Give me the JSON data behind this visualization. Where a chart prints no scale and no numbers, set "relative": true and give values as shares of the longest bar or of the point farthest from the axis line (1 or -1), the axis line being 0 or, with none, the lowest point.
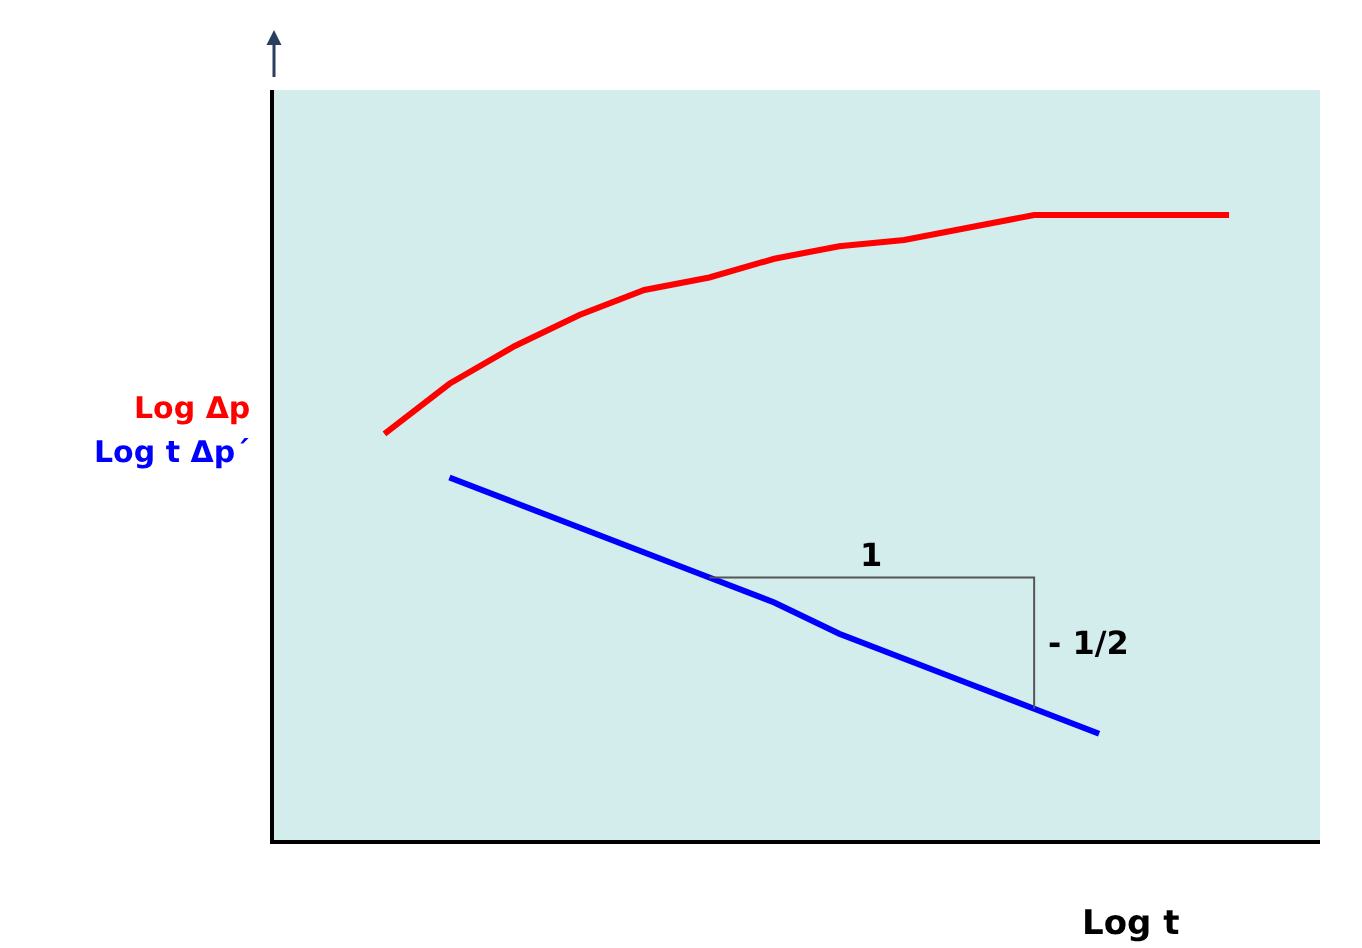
{
  "chart_data": {
    "type": "line",
    "relative": true,
    "xlabel": "Log t",
    "categories": [
      null,
      null,
      null,
      null,
      null,
      null,
      null,
      null,
      null,
      null,
      null,
      null,
      null,
      null
    ],
    "series": [
      {
        "name": "Log Δp",
        "color": "#ff0000",
        "values": [
          0.65,
          0.73,
          0.79,
          0.84,
          0.88,
          0.9,
          0.93,
          0.95,
          0.96,
          0.98,
          1.0,
          1.0,
          1.0,
          1.0
        ]
      },
      {
        "name": "Log t Δp´",
        "color": "#0000ff",
        "values": [
          null,
          0.58,
          0.54,
          0.5,
          0.46,
          0.42,
          0.38,
          0.33,
          0.29,
          0.25,
          0.21,
          0.17,
          null,
          null
        ]
      }
    ],
    "annotations": [
      "1",
      "- 1/2"
    ],
    "legend": false,
    "marker": "none",
    "line_style": "solid"
  }
}
